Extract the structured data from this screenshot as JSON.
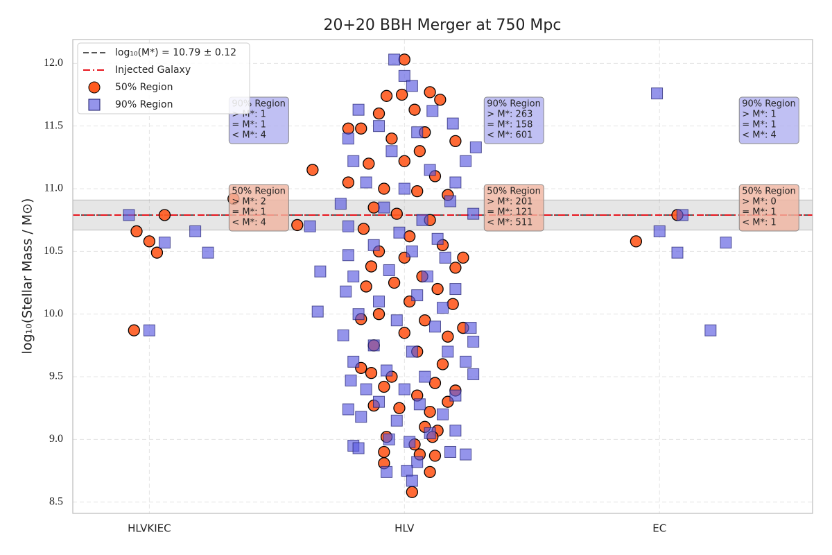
{
  "chart_data": {
    "type": "scatter",
    "title": "20+20 BBH Merger at 750 Mpc",
    "ylabel": "log₁₀(Stellar Mass / M⊙)",
    "xlim": [
      -0.3,
      2.6
    ],
    "xticks": [
      {
        "value": 0,
        "label": "HLVKIEC"
      },
      {
        "value": 1,
        "label": "HLV"
      },
      {
        "value": 2,
        "label": "EC"
      }
    ],
    "ylim": [
      8.41,
      12.19
    ],
    "yticks": [
      8.5,
      {
        "value": 9,
        "label": "9.0"
      },
      9.5,
      {
        "value": 10,
        "label": "10.0"
      },
      10.5,
      {
        "value": 11,
        "label": "11.0"
      },
      11.5,
      {
        "value": 12,
        "label": "12.0"
      }
    ],
    "grid": true,
    "legend": "upper left",
    "reference_lines": [
      {
        "name": "log₁₀(M*) = 10.79 ± 0.12",
        "value": 10.79,
        "error": 0.12,
        "color": "#555555",
        "style": "dashed"
      },
      {
        "name": "Injected Galaxy",
        "value": 10.79,
        "color": "#e8141c",
        "style": "dashdot"
      }
    ],
    "series": [
      {
        "name": "50% Region",
        "marker": "circle",
        "color": "#ff5a1f",
        "x": [
          -0.05,
          0.0,
          0.03,
          0.06,
          -0.06,
          1.908,
          2.07,
          1.0,
          0.99,
          1.1,
          1.14,
          0.93,
          1.04,
          0.9,
          1.08,
          1.2,
          0.83,
          0.95,
          1.06,
          0.86,
          1.0,
          1.12,
          0.78,
          0.92,
          1.05,
          1.17,
          0.88,
          0.97,
          1.1,
          0.84,
          1.02,
          1.15,
          0.9,
          1.0,
          1.23,
          1.2,
          0.87,
          1.07,
          0.96,
          1.13,
          0.85,
          1.02,
          1.19,
          0.9,
          1.08,
          1.23,
          0.83,
          1.0,
          1.17,
          0.88,
          1.05,
          0.83,
          1.15,
          0.95,
          1.12,
          0.87,
          1.2,
          0.92,
          1.05,
          1.17,
          0.88,
          0.98,
          1.1,
          1.08,
          1.13,
          0.93,
          1.04,
          1.11,
          0.92,
          1.06,
          1.12,
          0.92,
          1.1,
          1.03,
          0.64,
          0.33,
          0.58,
          0.78
        ],
        "values": [
          10.66,
          10.58,
          10.49,
          10.79,
          9.87,
          10.58,
          10.79,
          12.03,
          11.75,
          11.77,
          11.71,
          11.74,
          11.63,
          11.6,
          11.45,
          11.38,
          11.48,
          11.4,
          11.3,
          11.2,
          11.22,
          11.1,
          11.05,
          11.0,
          10.98,
          10.95,
          10.85,
          10.8,
          10.75,
          10.68,
          10.62,
          10.55,
          10.5,
          10.45,
          10.45,
          10.37,
          10.38,
          10.3,
          10.25,
          10.2,
          10.22,
          10.1,
          10.08,
          10.0,
          9.95,
          9.89,
          9.96,
          9.85,
          9.82,
          9.75,
          9.7,
          9.57,
          9.6,
          9.5,
          9.45,
          9.53,
          9.39,
          9.42,
          9.35,
          9.3,
          9.27,
          9.25,
          9.22,
          9.1,
          9.07,
          9.02,
          8.96,
          9.02,
          8.9,
          8.88,
          8.87,
          8.81,
          8.74,
          8.58,
          11.15,
          10.92,
          10.71,
          11.48
        ]
      },
      {
        "name": "90% Region",
        "marker": "square",
        "color": "#5a5ae0",
        "x": [
          -0.08,
          0.06,
          0.18,
          0.23,
          0.0,
          1.99,
          2.0,
          2.07,
          2.09,
          2.26,
          2.2,
          0.96,
          1.0,
          1.03,
          0.82,
          1.11,
          1.19,
          1.28,
          0.78,
          0.9,
          1.05,
          1.24,
          0.8,
          0.95,
          1.1,
          1.2,
          0.85,
          1.0,
          0.75,
          1.18,
          0.92,
          1.27,
          0.78,
          1.07,
          0.98,
          0.63,
          1.13,
          0.88,
          0.78,
          1.03,
          1.16,
          0.67,
          0.8,
          0.94,
          1.09,
          1.2,
          0.77,
          0.9,
          1.05,
          1.15,
          0.66,
          0.82,
          0.97,
          1.12,
          1.26,
          0.76,
          1.27,
          0.88,
          1.03,
          1.17,
          0.8,
          1.24,
          0.93,
          1.27,
          1.08,
          0.79,
          0.85,
          1.0,
          1.2,
          0.78,
          0.9,
          1.06,
          1.15,
          0.83,
          0.97,
          1.1,
          1.2,
          0.8,
          0.82,
          0.94,
          1.02,
          1.18,
          1.24,
          0.93,
          1.05,
          1.01,
          1.03
        ],
        "values": [
          10.79,
          10.57,
          10.66,
          10.49,
          9.87,
          11.76,
          10.66,
          10.49,
          10.79,
          10.57,
          9.87,
          12.03,
          11.9,
          11.82,
          11.63,
          11.62,
          11.52,
          11.33,
          11.4,
          11.5,
          11.45,
          11.22,
          11.22,
          11.3,
          11.15,
          11.05,
          11.05,
          11.0,
          10.88,
          10.9,
          10.85,
          10.8,
          10.7,
          10.75,
          10.65,
          10.7,
          10.6,
          10.55,
          10.47,
          10.5,
          10.45,
          10.34,
          10.3,
          10.35,
          10.3,
          10.2,
          10.18,
          10.1,
          10.15,
          10.05,
          10.02,
          10.0,
          9.95,
          9.9,
          9.89,
          9.83,
          9.78,
          9.75,
          9.7,
          9.7,
          9.62,
          9.62,
          9.55,
          9.52,
          9.5,
          9.47,
          9.4,
          9.4,
          9.35,
          9.24,
          9.3,
          9.28,
          9.2,
          9.18,
          9.15,
          9.05,
          9.07,
          8.95,
          8.93,
          9.0,
          8.98,
          8.9,
          8.88,
          8.74,
          8.82,
          8.75,
          8.67
        ]
      }
    ],
    "annotations": [
      {
        "lines": [
          "90% Region",
          "> M*: 1",
          "= M*: 1",
          "< M*: 4"
        ],
        "color": "#b0b0f0"
      },
      {
        "lines": [
          "50% Region",
          "> M*: 2",
          "= M*: 1",
          "< M*: 4"
        ],
        "color": "#f0b4a0"
      },
      {
        "lines": [
          "90% Region",
          "> M*: 263",
          "= M*: 158",
          "< M*: 601"
        ],
        "color": "#b0b0f0"
      },
      {
        "lines": [
          "50% Region",
          "> M*: 201",
          "= M*: 121",
          "< M*: 511"
        ],
        "color": "#f0b4a0"
      },
      {
        "lines": [
          "90% Region",
          "> M*: 1",
          "= M*: 1",
          "< M*: 4"
        ],
        "color": "#b0b0f0"
      },
      {
        "lines": [
          "50% Region",
          "> M*: 0",
          "= M*: 1",
          "< M*: 1"
        ],
        "color": "#f0b4a0"
      }
    ]
  }
}
